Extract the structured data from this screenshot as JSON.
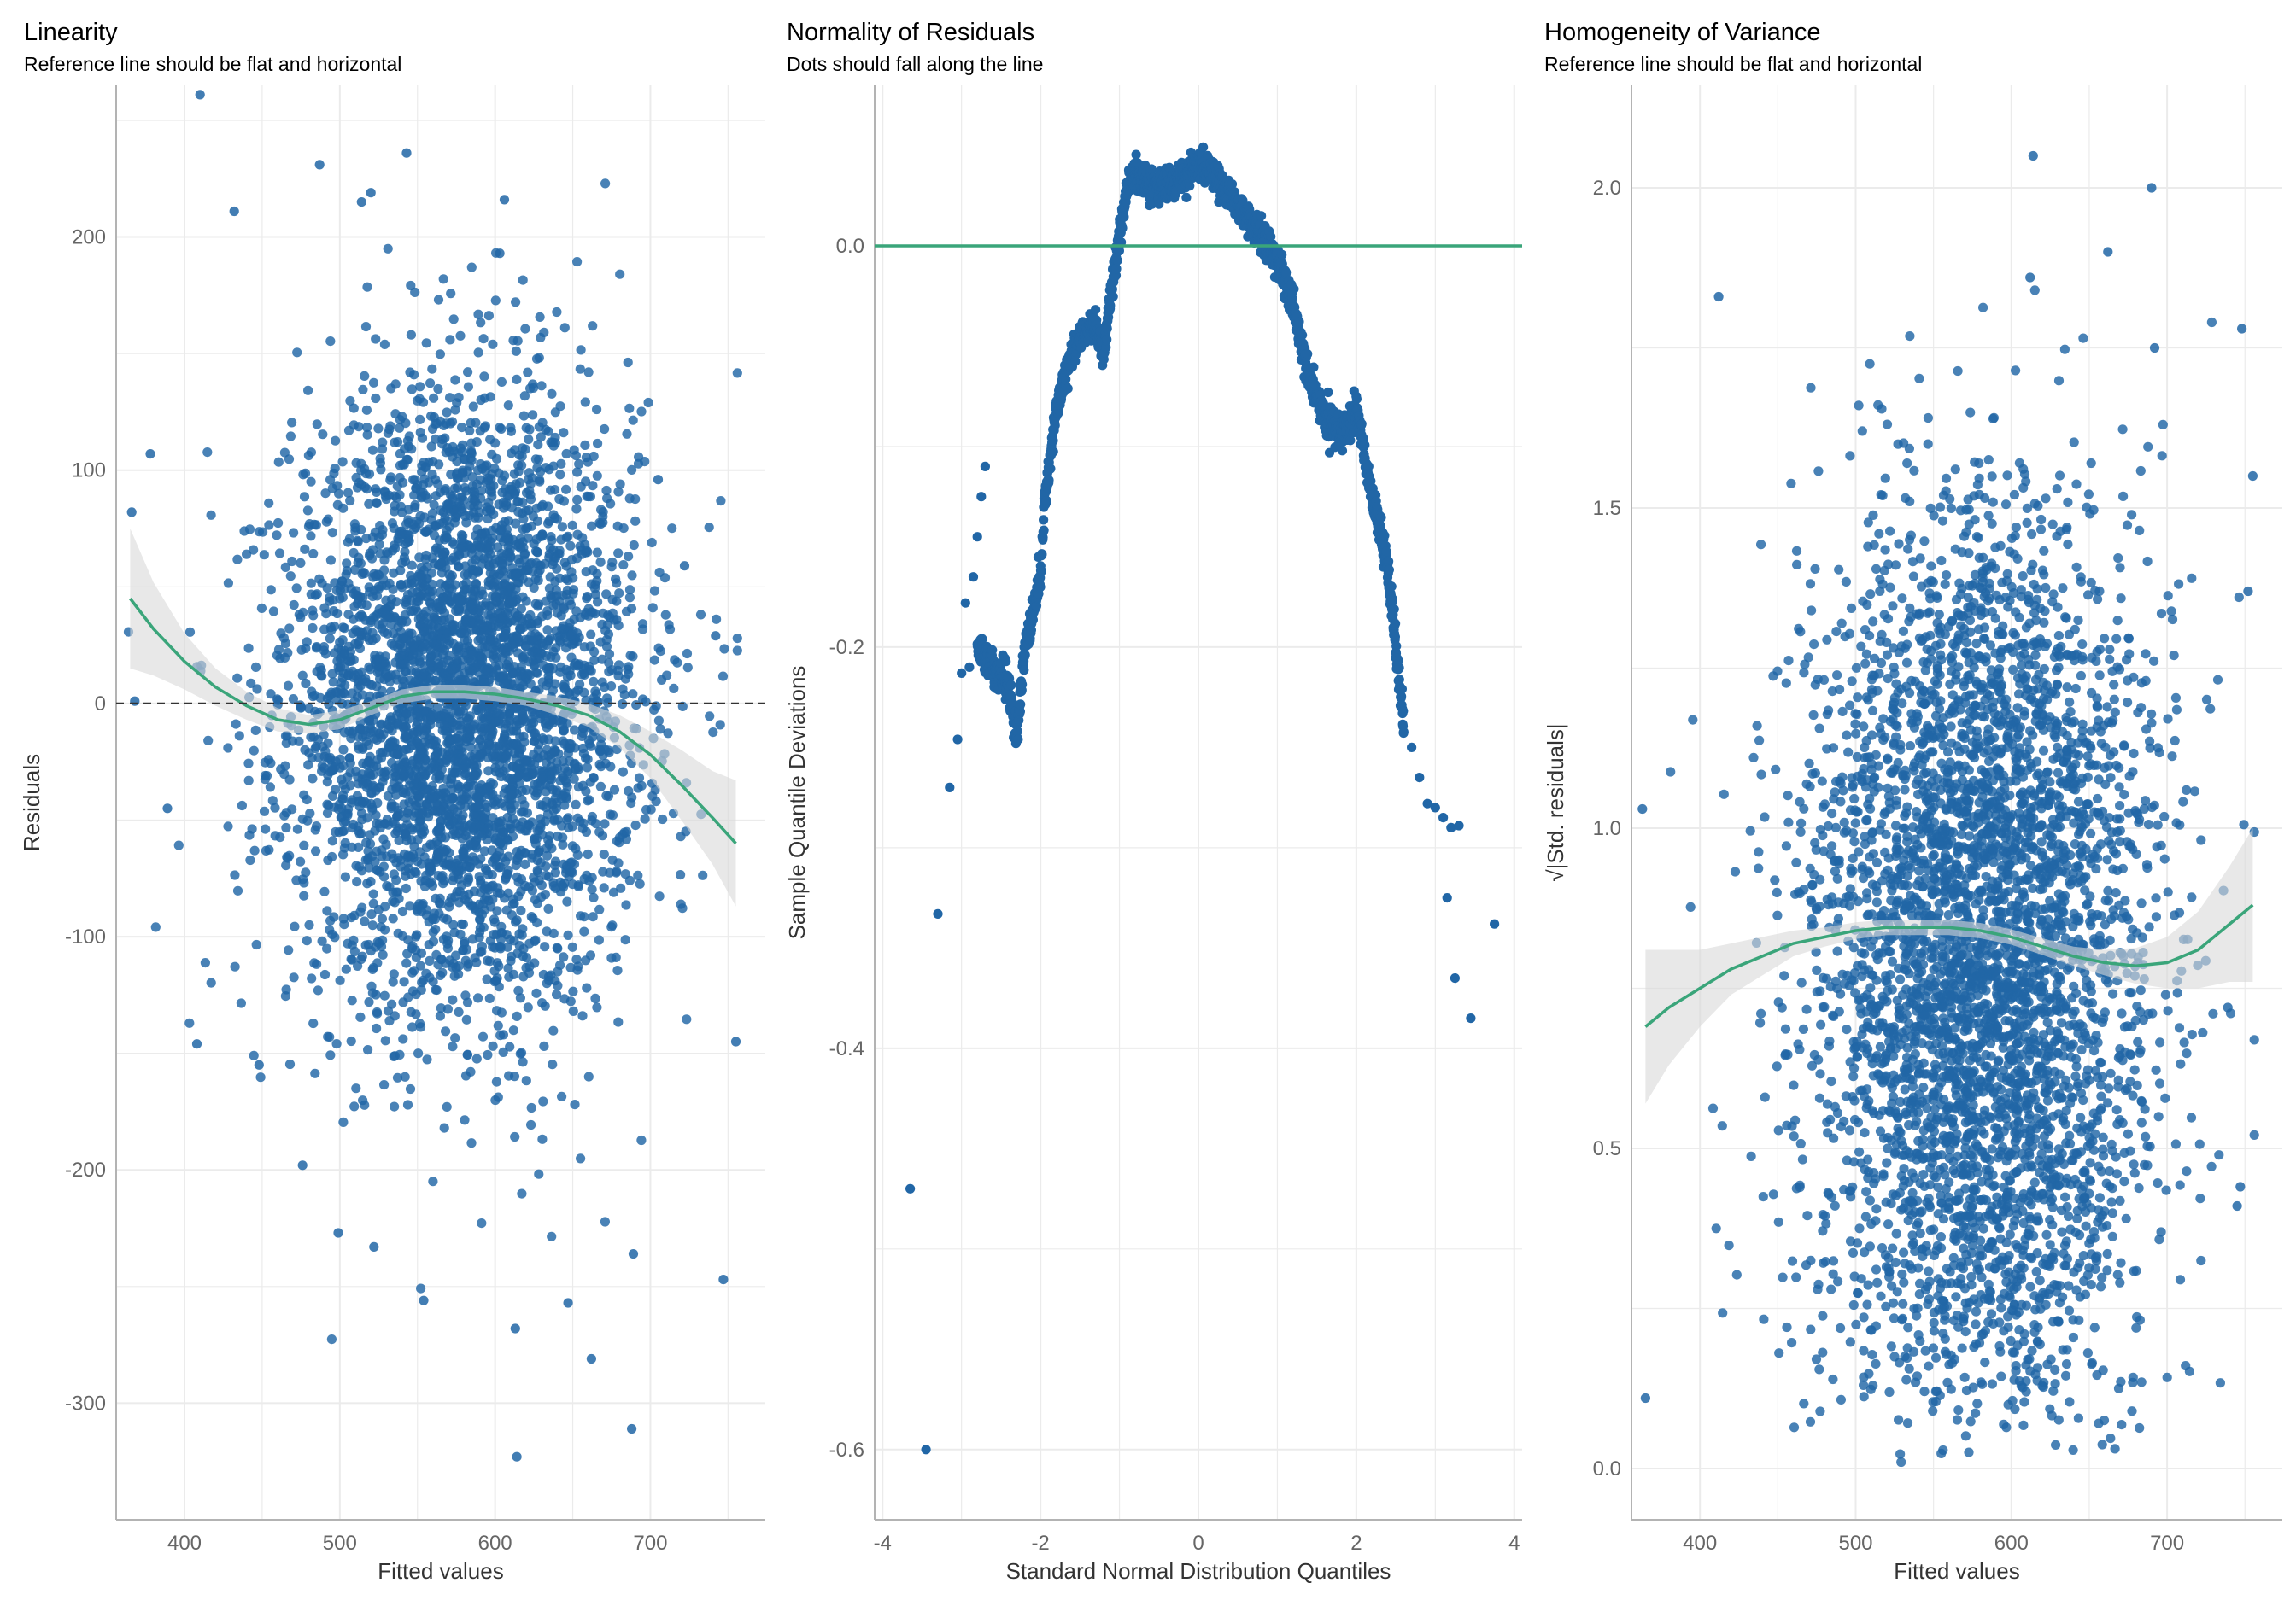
{
  "colors": {
    "points": "#2166a6",
    "fit_line": "#3aa57a",
    "band": "#d9d9d9",
    "grid": "#ebebeb",
    "axis_text": "#666666",
    "reference": "#3aa57a",
    "dashed": "#333333"
  },
  "chart_data": [
    {
      "type": "scatter",
      "title": "Linearity",
      "subtitle": "Reference line should be flat and horizontal",
      "xlabel": "Fitted values",
      "ylabel": "Residuals",
      "xlim": [
        356,
        774
      ],
      "ylim": [
        -350,
        265
      ],
      "xticks": [
        400,
        500,
        600,
        700
      ],
      "yticks": [
        -300,
        -200,
        -100,
        0,
        100,
        200
      ],
      "yticklabels": [
        "-300",
        "-200",
        "-100",
        "0",
        "100",
        "200"
      ],
      "grid": true,
      "reference_line": {
        "style": "dashed",
        "y": 0
      },
      "smooth_fit": {
        "x": [
          365,
          380,
          400,
          420,
          440,
          460,
          480,
          500,
          520,
          540,
          560,
          580,
          600,
          620,
          640,
          660,
          680,
          700,
          720,
          740,
          755
        ],
        "y": [
          45,
          32,
          18,
          7,
          -1,
          -7,
          -9,
          -7,
          -2,
          3,
          5,
          5,
          4,
          2,
          -1,
          -5,
          -12,
          -22,
          -35,
          -49,
          -60
        ],
        "band_halfwidth": [
          30,
          20,
          12,
          8,
          6,
          5,
          4,
          4,
          3,
          3,
          3,
          3,
          3,
          3,
          4,
          5,
          7,
          10,
          15,
          20,
          27
        ]
      },
      "point_cloud": {
        "n": 4200,
        "x_mean": 580,
        "x_sd": 55,
        "resid_sd": 65
      },
      "sample_points": [
        [
          410,
          261
        ],
        [
          543,
          236
        ],
        [
          487,
          231
        ],
        [
          520,
          219
        ],
        [
          514,
          215
        ],
        [
          432,
          211
        ],
        [
          606,
          216
        ],
        [
          603,
          193
        ],
        [
          378,
          107
        ],
        [
          366,
          82
        ],
        [
          368,
          1
        ],
        [
          389,
          -45
        ],
        [
          408,
          -146
        ],
        [
          448,
          -155
        ],
        [
          476,
          -198
        ],
        [
          499,
          -227
        ],
        [
          522,
          -233
        ],
        [
          554,
          -256
        ],
        [
          613,
          -268
        ],
        [
          662,
          -281
        ],
        [
          647,
          -257
        ],
        [
          688,
          -311
        ],
        [
          614,
          -323
        ],
        [
          747,
          -247
        ],
        [
          755,
          -145
        ],
        [
          689,
          -236
        ],
        [
          705,
          96
        ],
        [
          722,
          59
        ],
        [
          742,
          29
        ]
      ]
    },
    {
      "type": "scatter",
      "title": "Normality of Residuals",
      "subtitle": "Dots should fall along the line",
      "xlabel": "Standard Normal Distribution Quantiles",
      "ylabel": "Sample Quantile Deviations",
      "xlim": [
        -4.1,
        4.1
      ],
      "ylim": [
        -0.635,
        0.08
      ],
      "xticks": [
        -4,
        -2,
        0,
        2,
        4
      ],
      "yticks": [
        -0.6,
        -0.4,
        -0.2,
        0.0
      ],
      "yticklabels": [
        "-0.6",
        "-0.4",
        "-0.2",
        "0.0"
      ],
      "grid": true,
      "reference_line": {
        "style": "solid",
        "y": 0
      },
      "qq_curve": {
        "x": [
          -2.8,
          -2.6,
          -2.4,
          -2.3,
          -2.2,
          -2.0,
          -1.95,
          -1.8,
          -1.6,
          -1.5,
          -1.3,
          -1.2,
          -1.1,
          -1.0,
          -0.9,
          -0.8,
          -0.6,
          -0.4,
          -0.2,
          0.0,
          0.2,
          0.4,
          0.6,
          0.8,
          1.0,
          1.2,
          1.4,
          1.6,
          1.8,
          2.0,
          2.2,
          2.4,
          2.6
        ],
        "y": [
          -0.2,
          -0.21,
          -0.22,
          -0.245,
          -0.2,
          -0.165,
          -0.13,
          -0.08,
          -0.055,
          -0.045,
          -0.04,
          -0.055,
          -0.02,
          0.005,
          0.03,
          0.035,
          0.03,
          0.03,
          0.035,
          0.04,
          0.035,
          0.025,
          0.015,
          0.005,
          -0.005,
          -0.03,
          -0.065,
          -0.085,
          -0.095,
          -0.08,
          -0.125,
          -0.16,
          -0.24
        ]
      },
      "tail_points": [
        [
          -3.45,
          -0.6
        ],
        [
          -3.65,
          -0.47
        ],
        [
          -3.3,
          -0.333
        ],
        [
          -3.15,
          -0.27
        ],
        [
          -3.05,
          -0.246
        ],
        [
          -3.0,
          -0.213
        ],
        [
          -2.9,
          -0.21
        ],
        [
          -2.95,
          -0.178
        ],
        [
          -2.85,
          -0.165
        ],
        [
          -2.8,
          -0.145
        ],
        [
          -2.75,
          -0.125
        ],
        [
          -2.7,
          -0.11
        ],
        [
          2.7,
          -0.25
        ],
        [
          2.8,
          -0.265
        ],
        [
          2.9,
          -0.278
        ],
        [
          3.0,
          -0.28
        ],
        [
          3.1,
          -0.285
        ],
        [
          3.2,
          -0.29
        ],
        [
          3.3,
          -0.289
        ],
        [
          3.15,
          -0.325
        ],
        [
          3.25,
          -0.365
        ],
        [
          3.45,
          -0.385
        ],
        [
          3.75,
          -0.338
        ]
      ]
    },
    {
      "type": "scatter",
      "title": "Homogeneity of Variance",
      "subtitle": "Reference line should be flat and horizontal",
      "xlabel": "Fitted values",
      "ylabel": "√|Std. residuals|",
      "xlim": [
        356,
        774
      ],
      "ylim": [
        -0.08,
        2.16
      ],
      "xticks": [
        400,
        500,
        600,
        700
      ],
      "yticks": [
        0.0,
        0.5,
        1.0,
        1.5,
        2.0
      ],
      "yticklabels": [
        "0.0",
        "0.5",
        "1.0",
        "1.5",
        "2.0"
      ],
      "grid": true,
      "smooth_fit": {
        "x": [
          365,
          380,
          400,
          420,
          440,
          460,
          480,
          500,
          520,
          540,
          560,
          580,
          600,
          620,
          640,
          660,
          680,
          700,
          720,
          740,
          755
        ],
        "y": [
          0.69,
          0.72,
          0.75,
          0.78,
          0.8,
          0.82,
          0.83,
          0.84,
          0.845,
          0.845,
          0.845,
          0.84,
          0.83,
          0.815,
          0.8,
          0.79,
          0.785,
          0.79,
          0.81,
          0.85,
          0.88
        ],
        "band_halfwidth": [
          0.12,
          0.09,
          0.06,
          0.04,
          0.03,
          0.02,
          0.015,
          0.013,
          0.012,
          0.012,
          0.012,
          0.012,
          0.012,
          0.013,
          0.015,
          0.02,
          0.028,
          0.04,
          0.06,
          0.09,
          0.12
        ]
      },
      "point_cloud": {
        "n": 4200,
        "x_mean": 580,
        "x_sd": 55
      },
      "sample_points": [
        [
          614,
          2.05
        ],
        [
          690,
          2.0
        ],
        [
          412,
          1.83
        ],
        [
          363,
          1.03
        ],
        [
          365,
          0.11
        ],
        [
          612,
          1.86
        ],
        [
          662,
          1.9
        ],
        [
          692,
          1.75
        ],
        [
          748,
          1.78
        ],
        [
          752,
          1.37
        ],
        [
          755,
          1.55
        ],
        [
          747,
          0.44
        ],
        [
          745,
          0.41
        ],
        [
          739,
          0.72
        ]
      ]
    }
  ]
}
